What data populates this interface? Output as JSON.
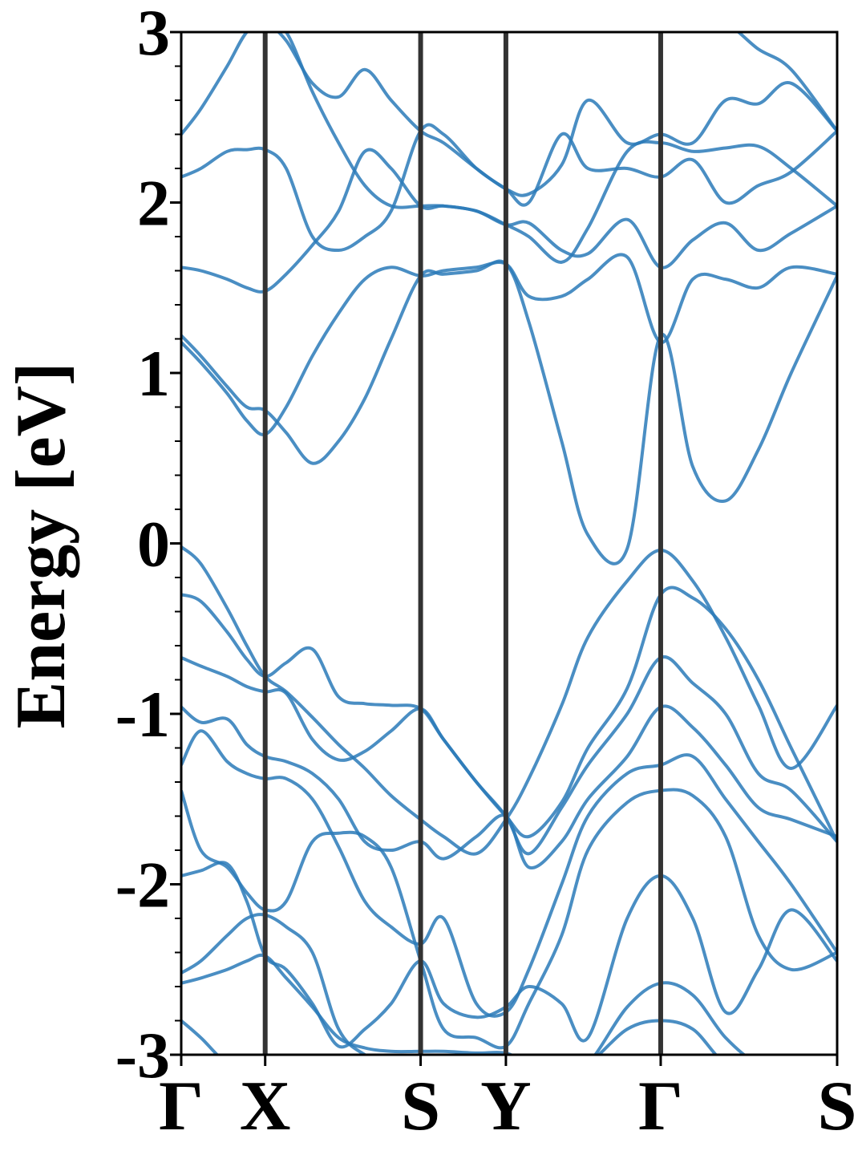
{
  "chart_data": {
    "type": "line",
    "title": "",
    "xlabel": "",
    "ylabel": "Energy [eV]",
    "ylim": [
      -3,
      3
    ],
    "yticks": [
      -3,
      -2,
      -1,
      0,
      1,
      2,
      3
    ],
    "ytick_labels": [
      "-3",
      "-2",
      "-1",
      "0",
      "1",
      "2",
      "3"
    ],
    "ytick_minor_step": 0.2,
    "k_path": [
      {
        "label": "Γ",
        "k": 0.0
      },
      {
        "label": "X",
        "k": 0.128
      },
      {
        "label": "S",
        "k": 0.365
      },
      {
        "label": "Y",
        "k": 0.495
      },
      {
        "label": "Γ",
        "k": 0.731
      },
      {
        "label": "S",
        "k": 1.0
      }
    ],
    "xlim": [
      0,
      1
    ],
    "grid": false,
    "legend": "none",
    "line_color": "#2a7ab8",
    "path_line_color": "#333333",
    "series": [
      {
        "k": [
          0,
          0.03,
          0.07,
          0.1,
          0.128,
          0.16,
          0.2,
          0.24,
          0.28,
          0.32,
          0.365,
          0.4,
          0.45,
          0.495,
          0.53,
          0.58,
          0.62,
          0.68,
          0.731,
          0.78,
          0.83,
          0.88,
          0.93,
          1.0
        ],
        "values": [
          -0.02,
          -0.12,
          -0.38,
          -0.6,
          -0.78,
          -0.87,
          -1.02,
          -1.18,
          -1.32,
          -1.48,
          -1.62,
          -1.72,
          -1.82,
          -1.62,
          -1.38,
          -0.95,
          -0.55,
          -0.22,
          -0.04,
          -0.22,
          -0.55,
          -0.95,
          -1.32,
          -0.95
        ]
      },
      {
        "k": [
          0,
          0.03,
          0.07,
          0.1,
          0.128,
          0.16,
          0.2,
          0.24,
          0.28,
          0.32,
          0.365,
          0.4,
          0.45,
          0.495,
          0.53,
          0.58,
          0.62,
          0.68,
          0.731,
          0.78,
          0.83,
          0.88,
          0.93,
          1.0
        ],
        "values": [
          -0.3,
          -0.34,
          -0.52,
          -0.68,
          -0.78,
          -0.7,
          -0.62,
          -0.9,
          -0.94,
          -0.95,
          -0.97,
          -1.15,
          -1.4,
          -1.6,
          -1.72,
          -1.52,
          -1.2,
          -0.85,
          -0.3,
          -0.32,
          -0.5,
          -0.8,
          -1.2,
          -1.75
        ]
      },
      {
        "k": [
          0,
          0.03,
          0.07,
          0.1,
          0.128,
          0.16,
          0.2,
          0.24,
          0.28,
          0.32,
          0.365,
          0.4,
          0.45,
          0.495,
          0.53,
          0.58,
          0.62,
          0.68,
          0.731,
          0.78,
          0.83,
          0.88,
          0.93,
          1.0
        ],
        "values": [
          -0.67,
          -0.72,
          -0.78,
          -0.84,
          -0.87,
          -0.88,
          -1.15,
          -1.27,
          -1.22,
          -1.1,
          -0.97,
          -1.15,
          -1.4,
          -1.6,
          -1.82,
          -1.55,
          -1.3,
          -1.0,
          -0.67,
          -0.82,
          -1.0,
          -1.35,
          -1.45,
          -1.75
        ]
      },
      {
        "k": [
          0,
          0.03,
          0.07,
          0.1,
          0.128,
          0.16,
          0.2,
          0.24,
          0.28,
          0.32,
          0.365,
          0.4,
          0.45,
          0.495,
          0.53,
          0.58,
          0.62,
          0.68,
          0.731,
          0.78,
          0.83,
          0.88,
          0.93,
          1.0
        ],
        "values": [
          -0.96,
          -1.05,
          -1.03,
          -1.18,
          -1.25,
          -1.28,
          -1.35,
          -1.5,
          -1.75,
          -1.8,
          -1.75,
          -1.85,
          -1.72,
          -1.6,
          -1.9,
          -1.75,
          -1.5,
          -1.25,
          -0.96,
          -1.08,
          -1.3,
          -1.55,
          -1.62,
          -1.72
        ]
      },
      {
        "k": [
          0,
          0.03,
          0.07,
          0.1,
          0.128,
          0.16,
          0.2,
          0.24,
          0.28,
          0.32,
          0.365,
          0.4,
          0.45,
          0.495,
          0.53,
          0.58,
          0.62,
          0.68,
          0.731,
          0.78,
          0.83,
          0.88,
          0.93,
          1.0
        ],
        "values": [
          -1.3,
          -1.1,
          -1.28,
          -1.35,
          -1.38,
          -1.38,
          -1.5,
          -1.78,
          -2.1,
          -2.25,
          -2.35,
          -2.2,
          -2.7,
          -2.75,
          -2.5,
          -2.0,
          -1.6,
          -1.35,
          -1.3,
          -1.25,
          -1.5,
          -1.75,
          -2.0,
          -2.4
        ]
      },
      {
        "k": [
          0,
          0.03,
          0.07,
          0.1,
          0.128,
          0.16,
          0.2,
          0.24,
          0.28,
          0.32,
          0.365,
          0.4,
          0.45,
          0.495,
          0.53,
          0.58,
          0.62,
          0.68,
          0.731,
          0.78,
          0.83,
          0.88,
          0.93,
          1.0
        ],
        "values": [
          -1.45,
          -1.8,
          -1.9,
          -2.05,
          -2.15,
          -2.1,
          -1.75,
          -1.7,
          -1.72,
          -1.9,
          -2.45,
          -2.85,
          -2.9,
          -2.95,
          -2.7,
          -2.3,
          -1.8,
          -1.52,
          -1.45,
          -1.48,
          -1.72,
          -2.3,
          -2.5,
          -2.4
        ]
      },
      {
        "k": [
          0,
          0.03,
          0.07,
          0.1,
          0.128,
          0.16,
          0.2,
          0.24,
          0.28,
          0.32,
          0.365,
          0.4,
          0.45,
          0.495,
          0.53,
          0.58,
          0.62,
          0.68,
          0.731,
          0.78,
          0.83,
          0.88,
          0.93,
          1.0
        ],
        "values": [
          -1.95,
          -1.92,
          -1.88,
          -2.1,
          -2.42,
          -2.5,
          -2.7,
          -2.95,
          -2.85,
          -2.7,
          -2.45,
          -2.7,
          -2.78,
          -2.72,
          -2.6,
          -2.7,
          -2.9,
          -2.2,
          -1.95,
          -2.2,
          -2.75,
          -2.5,
          -2.15,
          -2.45
        ]
      },
      {
        "k": [
          0,
          0.03,
          0.07,
          0.1,
          0.128,
          0.16,
          0.2,
          0.24,
          0.28,
          0.32,
          0.365,
          0.4,
          0.45,
          0.495,
          0.53,
          0.58,
          0.62,
          0.68,
          0.731,
          0.78,
          0.83,
          0.88,
          0.93,
          1.0
        ],
        "values": [
          -2.52,
          -2.45,
          -2.3,
          -2.2,
          -2.18,
          -2.25,
          -2.4,
          -2.85,
          -3.0,
          -3.05,
          -3.05,
          -3.05,
          -3.05,
          -3.05,
          -3.05,
          -3.05,
          -3.05,
          -2.72,
          -2.58,
          -2.65,
          -2.9,
          -3.05,
          -3.05,
          -3.05
        ]
      },
      {
        "k": [
          0,
          0.03,
          0.07,
          0.1,
          0.128,
          0.16,
          0.2,
          0.24,
          0.28,
          0.32,
          0.365,
          0.4,
          0.45,
          0.495,
          0.53,
          0.58,
          0.62,
          0.68,
          0.731,
          0.78,
          0.83,
          0.88,
          0.93,
          1.0
        ],
        "values": [
          -2.58,
          -2.55,
          -2.5,
          -2.45,
          -2.42,
          -2.55,
          -2.72,
          -2.9,
          -2.96,
          -2.98,
          -2.98,
          -2.98,
          -2.99,
          -2.99,
          -3.05,
          -3.05,
          -3.05,
          -2.85,
          -2.8,
          -2.85,
          -3.05,
          -3.05,
          -3.05,
          -3.05
        ]
      },
      {
        "k": [
          0,
          0.03,
          0.07,
          0.1,
          0.128,
          0.16,
          0.2,
          0.24,
          0.28,
          0.32,
          0.365,
          0.4,
          0.45,
          0.495,
          0.53,
          0.58,
          0.62,
          0.68,
          0.731,
          0.78,
          0.83,
          0.88,
          0.93,
          1.0
        ],
        "values": [
          1.22,
          1.1,
          0.92,
          0.8,
          0.78,
          0.65,
          0.47,
          0.6,
          0.85,
          1.2,
          1.57,
          1.58,
          1.6,
          1.64,
          1.3,
          0.6,
          0.05,
          -0.03,
          1.22,
          0.45,
          0.25,
          0.55,
          1.0,
          1.57
        ]
      },
      {
        "k": [
          0,
          0.03,
          0.07,
          0.1,
          0.128,
          0.16,
          0.2,
          0.24,
          0.28,
          0.32,
          0.365,
          0.4,
          0.45,
          0.495,
          0.53,
          0.58,
          0.62,
          0.68,
          0.731,
          0.78,
          0.83,
          0.88,
          0.93,
          1.0
        ],
        "values": [
          1.18,
          1.06,
          0.88,
          0.72,
          0.64,
          0.8,
          1.1,
          1.35,
          1.55,
          1.62,
          1.57,
          1.6,
          1.62,
          1.64,
          1.45,
          1.45,
          1.55,
          1.68,
          1.18,
          1.55,
          1.55,
          1.5,
          1.62,
          1.58
        ]
      },
      {
        "k": [
          0,
          0.03,
          0.07,
          0.1,
          0.128,
          0.16,
          0.2,
          0.24,
          0.28,
          0.32,
          0.365,
          0.4,
          0.45,
          0.495,
          0.53,
          0.58,
          0.62,
          0.68,
          0.731,
          0.78,
          0.83,
          0.88,
          0.93,
          1.0
        ],
        "values": [
          1.62,
          1.6,
          1.55,
          1.5,
          1.48,
          1.58,
          1.75,
          1.95,
          2.3,
          2.2,
          1.98,
          1.98,
          1.95,
          1.87,
          1.88,
          1.72,
          1.7,
          1.9,
          1.62,
          1.78,
          1.88,
          1.72,
          1.82,
          1.98
        ]
      },
      {
        "k": [
          0,
          0.03,
          0.07,
          0.1,
          0.128,
          0.16,
          0.2,
          0.24,
          0.28,
          0.32,
          0.365,
          0.4,
          0.45,
          0.495,
          0.53,
          0.58,
          0.62,
          0.68,
          0.731,
          0.78,
          0.83,
          0.88,
          0.93,
          1.0
        ],
        "values": [
          2.15,
          2.2,
          2.3,
          2.31,
          2.31,
          2.2,
          1.8,
          1.72,
          1.8,
          1.95,
          2.42,
          2.4,
          2.2,
          2.08,
          2.0,
          2.4,
          2.2,
          2.2,
          2.15,
          2.25,
          2.0,
          2.1,
          2.18,
          2.42
        ]
      },
      {
        "k": [
          0,
          0.03,
          0.07,
          0.1,
          0.128,
          0.16,
          0.2,
          0.24,
          0.28,
          0.32,
          0.365,
          0.4,
          0.45,
          0.495,
          0.53,
          0.58,
          0.62,
          0.68,
          0.731,
          0.78,
          0.83,
          0.88,
          0.93,
          1.0
        ],
        "values": [
          2.4,
          2.55,
          2.8,
          3.0,
          3.05,
          2.95,
          2.7,
          2.62,
          2.78,
          2.6,
          2.42,
          2.35,
          2.2,
          2.08,
          2.05,
          2.22,
          2.6,
          2.35,
          2.4,
          2.35,
          2.6,
          2.58,
          2.7,
          2.42
        ]
      },
      {
        "k": [
          0,
          0.03,
          0.07,
          0.1,
          0.128,
          0.16,
          0.2,
          0.24,
          0.28,
          0.32,
          0.365,
          0.4,
          0.45,
          0.495,
          0.53,
          0.58,
          0.62,
          0.68,
          0.731,
          0.78,
          0.83,
          0.88,
          0.93,
          1.0
        ],
        "values": [
          3.05,
          3.05,
          3.05,
          3.05,
          3.05,
          3.0,
          2.65,
          2.35,
          2.1,
          1.98,
          1.98,
          1.98,
          1.95,
          1.87,
          1.8,
          1.65,
          1.85,
          2.3,
          2.35,
          2.3,
          2.32,
          2.33,
          2.2,
          1.98
        ]
      },
      {
        "k": [
          0,
          0.03,
          0.07,
          0.1,
          0.128,
          0.16,
          0.2,
          0.24,
          0.28,
          0.32,
          0.365,
          0.4,
          0.45,
          0.495,
          0.53,
          0.58,
          0.62,
          0.68,
          0.731,
          0.78,
          0.83,
          0.88,
          0.93,
          1.0
        ],
        "values": [
          -2.8,
          -2.9,
          -3.05,
          -3.05,
          -3.0,
          -3.05,
          -3.05,
          -3.05,
          -3.05,
          -3.05,
          -3.05,
          -3.05,
          -3.05,
          -3.05,
          -3.05,
          -3.05,
          -3.05,
          -3.05,
          -3.05,
          -3.05,
          -3.05,
          -3.05,
          -3.05,
          -3.05
        ]
      },
      {
        "k": [
          0,
          0.03,
          0.07,
          0.1,
          0.128,
          0.16,
          0.2,
          0.24,
          0.28,
          0.32,
          0.365,
          0.4,
          0.45,
          0.495,
          0.53,
          0.58,
          0.62,
          0.68,
          0.731,
          0.78,
          0.83,
          0.88,
          0.93,
          1.0
        ],
        "values": [
          3.05,
          3.05,
          3.05,
          3.05,
          3.05,
          3.05,
          3.05,
          3.05,
          3.05,
          3.05,
          3.05,
          3.05,
          3.05,
          3.05,
          3.05,
          3.05,
          3.05,
          3.05,
          3.05,
          3.05,
          3.05,
          2.9,
          2.78,
          2.42
        ]
      }
    ]
  }
}
